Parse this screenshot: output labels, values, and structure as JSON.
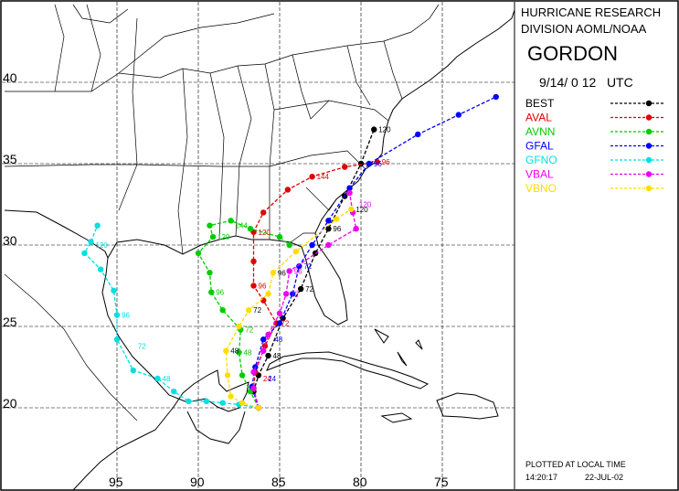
{
  "header": {
    "org_line1": "HURRICANE RESEARCH",
    "org_line2": "DIVISION AOML/NOAA",
    "storm_name": "GORDON",
    "init_time": "9/14/ 0 12   UTC"
  },
  "axes": {
    "lat_labels": [
      "40",
      "35",
      "30",
      "25",
      "20"
    ],
    "lon_labels": [
      "95",
      "90",
      "85",
      "80",
      "75"
    ]
  },
  "legend": [
    {
      "name": "BEST",
      "color": "#000000"
    },
    {
      "name": "AVAL",
      "color": "#e00000"
    },
    {
      "name": "AVNN",
      "color": "#00cc00"
    },
    {
      "name": "GFAL",
      "color": "#0000ff"
    },
    {
      "name": "GFNO",
      "color": "#00e0e0"
    },
    {
      "name": "VBAL",
      "color": "#ee00ee"
    },
    {
      "name": "VBNO",
      "color": "#ffdd00"
    }
  ],
  "tracks": [
    {
      "name": "BEST",
      "color": "#000000",
      "points": [
        [
          -86.3,
          20.0
        ],
        [
          -86.6,
          21.0
        ],
        [
          -86.3,
          22.0
        ],
        [
          -85.7,
          23.2
        ],
        [
          -84.8,
          25.5
        ],
        [
          -83.7,
          27.3
        ],
        [
          -82.8,
          29.5
        ],
        [
          -82.0,
          31.0
        ],
        [
          -81.0,
          33.0
        ],
        [
          -80.0,
          35.0
        ],
        [
          -79.2,
          37.1
        ]
      ],
      "labels": [
        {
          "t": "48",
          "lon": -85.7,
          "lat": 23.2
        },
        {
          "t": "72",
          "lon": -83.7,
          "lat": 27.3
        },
        {
          "t": "96",
          "lon": -82.0,
          "lat": 31.0
        },
        {
          "t": "120",
          "lon": -79.2,
          "lat": 37.1
        }
      ]
    },
    {
      "name": "AVAL",
      "color": "#e00000",
      "points": [
        [
          -86.3,
          20.0
        ],
        [
          -86.6,
          21.2
        ],
        [
          -86.5,
          22.2
        ],
        [
          -85.9,
          23.8
        ],
        [
          -85.2,
          25.2
        ],
        [
          -86.0,
          26.6
        ],
        [
          -86.6,
          27.5
        ],
        [
          -86.6,
          29.0
        ],
        [
          -86.6,
          30.8
        ],
        [
          -86.0,
          32.0
        ],
        [
          -84.5,
          33.4
        ],
        [
          -83.0,
          34.2
        ],
        [
          -81.0,
          34.8
        ],
        [
          -79.0,
          35.1
        ]
      ],
      "labels": [
        {
          "t": "24",
          "lon": -86.3,
          "lat": 21.8
        },
        {
          "t": "72",
          "lon": -85.2,
          "lat": 25.2
        },
        {
          "t": "96",
          "lon": -86.6,
          "lat": 27.5
        },
        {
          "t": "120",
          "lon": -86.6,
          "lat": 30.8
        },
        {
          "t": "144",
          "lon": -83.0,
          "lat": 34.2
        },
        {
          "t": "96",
          "lon": -79.0,
          "lat": 35.1
        }
      ]
    },
    {
      "name": "AVNN",
      "color": "#00cc00",
      "points": [
        [
          -86.3,
          20.0
        ],
        [
          -86.8,
          21.0
        ],
        [
          -87.3,
          22.0
        ],
        [
          -87.5,
          23.4
        ],
        [
          -87.4,
          24.8
        ],
        [
          -88.5,
          26.0
        ],
        [
          -89.2,
          27.1
        ],
        [
          -89.3,
          28.3
        ],
        [
          -90.0,
          29.5
        ],
        [
          -89.1,
          30.5
        ],
        [
          -89.3,
          31.2
        ],
        [
          -88.0,
          31.5
        ],
        [
          -86.8,
          31.0
        ],
        [
          -85.0,
          30.5
        ],
        [
          -84.4,
          30.0
        ]
      ],
      "labels": [
        {
          "t": "48",
          "lon": -87.5,
          "lat": 23.4
        },
        {
          "t": "72",
          "lon": -87.4,
          "lat": 24.8
        },
        {
          "t": "96",
          "lon": -89.2,
          "lat": 27.1
        },
        {
          "t": "120",
          "lon": -89.1,
          "lat": 30.5
        },
        {
          "t": "144",
          "lon": -88.0,
          "lat": 31.2
        }
      ]
    },
    {
      "name": "GFAL",
      "color": "#0000ff",
      "points": [
        [
          -86.3,
          20.0
        ],
        [
          -86.7,
          21.3
        ],
        [
          -86.5,
          22.5
        ],
        [
          -86.0,
          24.2
        ],
        [
          -85.0,
          25.2
        ],
        [
          -84.2,
          27.0
        ],
        [
          -83.8,
          28.7
        ],
        [
          -83.0,
          30.0
        ],
        [
          -82.0,
          31.5
        ],
        [
          -80.7,
          33.5
        ],
        [
          -79.5,
          35.0
        ],
        [
          -76.5,
          36.8
        ],
        [
          -74.0,
          38.0
        ],
        [
          -71.7,
          39.1
        ]
      ],
      "labels": [
        {
          "t": "24",
          "lon": -86.0,
          "lat": 21.8
        },
        {
          "t": "48",
          "lon": -85.6,
          "lat": 24.2
        },
        {
          "t": "72",
          "lon": -83.8,
          "lat": 28.7
        },
        {
          "t": "96",
          "lon": -79.5,
          "lat": 35.0
        }
      ]
    },
    {
      "name": "GFNO",
      "color": "#00e0e0",
      "points": [
        [
          -86.3,
          20.0
        ],
        [
          -87.5,
          20.2
        ],
        [
          -88.5,
          20.3
        ],
        [
          -89.5,
          20.4
        ],
        [
          -90.6,
          20.4
        ],
        [
          -91.5,
          21.0
        ],
        [
          -92.5,
          21.8
        ],
        [
          -94.0,
          22.3
        ],
        [
          -95.0,
          24.2
        ],
        [
          -95.0,
          25.7
        ],
        [
          -95.2,
          27.2
        ],
        [
          -96.0,
          28.5
        ],
        [
          -97.0,
          29.5
        ],
        [
          -96.6,
          30.2
        ],
        [
          -96.2,
          31.2
        ]
      ],
      "labels": [
        {
          "t": "48",
          "lon": -92.5,
          "lat": 21.8
        },
        {
          "t": "72",
          "lon": -94.0,
          "lat": 23.8
        },
        {
          "t": "96",
          "lon": -95.0,
          "lat": 25.7
        },
        {
          "t": "120",
          "lon": -96.6,
          "lat": 30.0
        }
      ]
    },
    {
      "name": "VBAL",
      "color": "#ee00ee",
      "points": [
        [
          -86.3,
          20.0
        ],
        [
          -86.6,
          21.2
        ],
        [
          -86.6,
          22.2
        ],
        [
          -86.0,
          23.5
        ],
        [
          -85.7,
          24.5
        ],
        [
          -85.0,
          25.8
        ],
        [
          -84.6,
          27.0
        ],
        [
          -84.4,
          28.4
        ],
        [
          -82.0,
          30.0
        ],
        [
          -80.3,
          31.0
        ],
        [
          -80.5,
          32.0
        ],
        [
          -80.7,
          33.2
        ]
      ],
      "labels": [
        {
          "t": "72",
          "lon": -84.6,
          "lat": 27.0
        },
        {
          "t": "96",
          "lon": -84.4,
          "lat": 28.4
        },
        {
          "t": "120",
          "lon": -80.4,
          "lat": 32.5
        }
      ]
    },
    {
      "name": "VBNO",
      "color": "#ffdd00",
      "points": [
        [
          -86.3,
          20.0
        ],
        [
          -87.3,
          20.3
        ],
        [
          -88.0,
          20.7
        ],
        [
          -88.2,
          22.0
        ],
        [
          -88.3,
          23.5
        ],
        [
          -87.5,
          25.0
        ],
        [
          -86.9,
          26.0
        ],
        [
          -85.7,
          27.0
        ],
        [
          -85.4,
          28.3
        ],
        [
          -84.0,
          29.6
        ],
        [
          -81.5,
          31.6
        ],
        [
          -80.6,
          32.2
        ]
      ],
      "labels": [
        {
          "t": "48",
          "lon": -88.3,
          "lat": 23.5
        },
        {
          "t": "72",
          "lon": -86.9,
          "lat": 26.0
        },
        {
          "t": "96",
          "lon": -85.4,
          "lat": 28.3
        },
        {
          "t": "120",
          "lon": -80.6,
          "lat": 32.2
        }
      ]
    }
  ],
  "footer": {
    "plotted": "PLOTTED AT LOCAL TIME",
    "time": "14:20:17",
    "date": "22-JUL-02"
  }
}
